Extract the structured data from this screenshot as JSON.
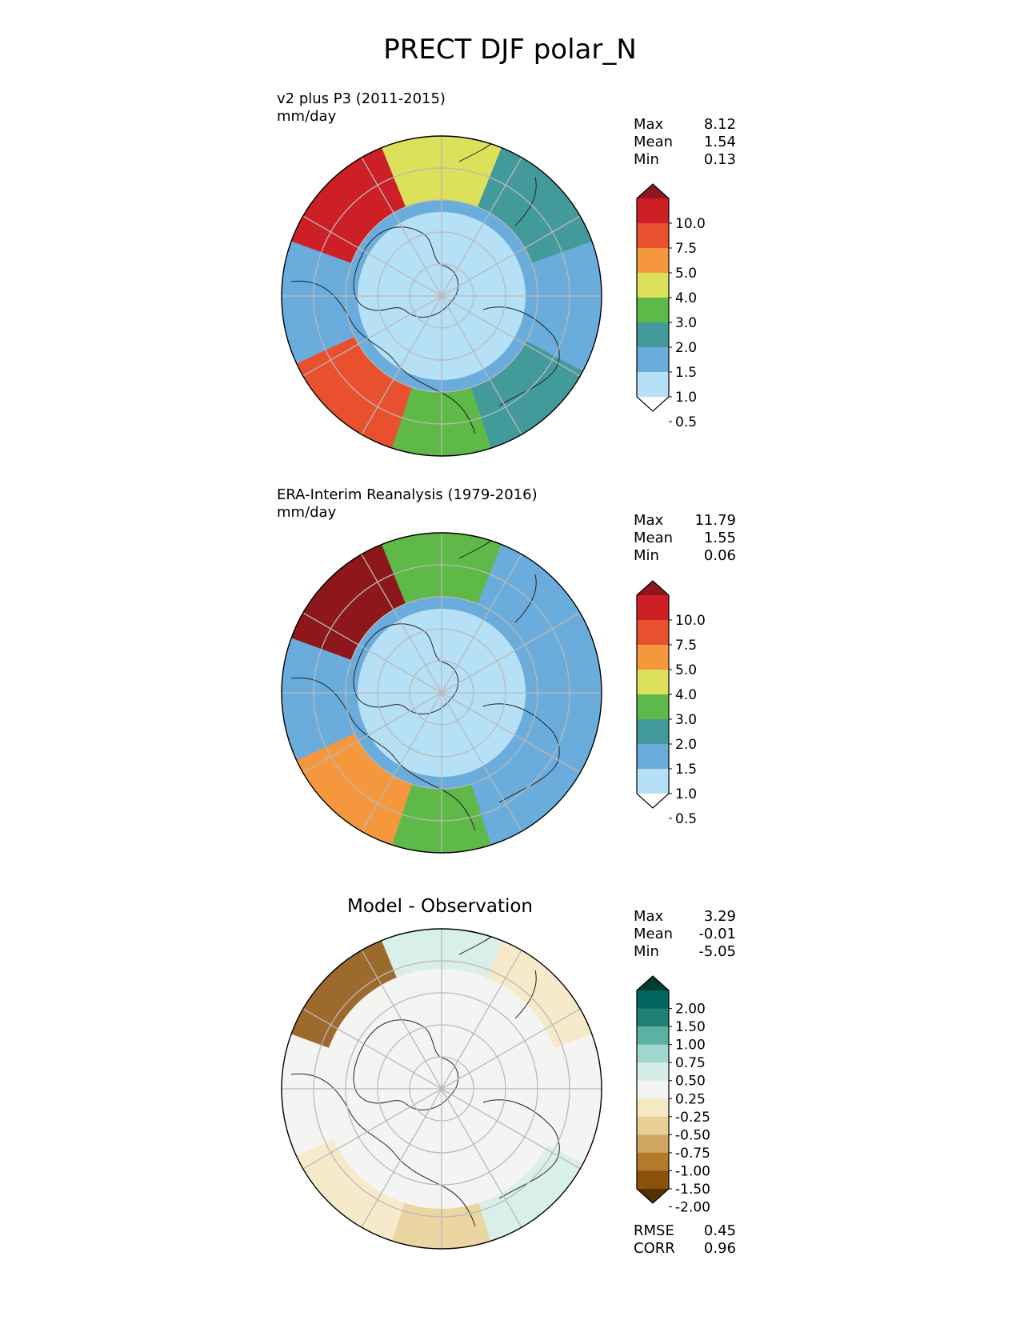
{
  "figure_title": "PRECT DJF polar_N",
  "chart_data": [
    {
      "type": "heatmap",
      "projection": "north polar stereographic",
      "title": "v2 plus P3 (2011-2015)",
      "units": "mm/day",
      "stats": [
        {
          "label": "Max",
          "value": "8.12"
        },
        {
          "label": "Mean",
          "value": "1.54"
        },
        {
          "label": "Min",
          "value": "0.13"
        }
      ],
      "colorbar": {
        "extend": "both",
        "ticks": [
          "10.0",
          "7.5",
          "5.0",
          "4.0",
          "3.0",
          "2.0",
          "1.5",
          "1.0",
          "0.5"
        ],
        "colors": [
          "#ffffff",
          "#b6e0f6",
          "#6aaddc",
          "#439a9a",
          "#5fb949",
          "#dde05a",
          "#f5973d",
          "#e9502e",
          "#cc1f26",
          "#8d171a"
        ]
      },
      "region_summary": [
        {
          "sector": "north",
          "level": 3.0
        },
        {
          "sector": "north-west",
          "level": 7.5
        },
        {
          "sector": "north-east",
          "level": 1.5
        },
        {
          "sector": "east",
          "level": 1.0
        },
        {
          "sector": "south-east",
          "level": 1.5
        },
        {
          "sector": "south",
          "level": 2.0
        },
        {
          "sector": "south-west",
          "level": 5.0
        },
        {
          "sector": "west",
          "level": 1.0
        },
        {
          "sector": "pole",
          "level": 0.5
        }
      ]
    },
    {
      "type": "heatmap",
      "projection": "north polar stereographic",
      "title": "ERA-Interim Reanalysis (1979-2016)",
      "units": "mm/day",
      "stats": [
        {
          "label": "Max",
          "value": "11.79"
        },
        {
          "label": "Mean",
          "value": "1.55"
        },
        {
          "label": "Min",
          "value": "0.06"
        }
      ],
      "colorbar": {
        "extend": "both",
        "ticks": [
          "10.0",
          "7.5",
          "5.0",
          "4.0",
          "3.0",
          "2.0",
          "1.5",
          "1.0",
          "0.5"
        ],
        "colors": [
          "#ffffff",
          "#b6e0f6",
          "#6aaddc",
          "#439a9a",
          "#5fb949",
          "#dde05a",
          "#f5973d",
          "#e9502e",
          "#cc1f26",
          "#8d171a"
        ]
      },
      "region_summary": [
        {
          "sector": "north",
          "level": 2.0
        },
        {
          "sector": "north-west",
          "level": 10.0
        },
        {
          "sector": "north-east",
          "level": 1.0
        },
        {
          "sector": "east",
          "level": 1.0
        },
        {
          "sector": "south-east",
          "level": 1.0
        },
        {
          "sector": "south",
          "level": 2.0
        },
        {
          "sector": "south-west",
          "level": 4.0
        },
        {
          "sector": "west",
          "level": 1.0
        },
        {
          "sector": "pole",
          "level": 0.5
        }
      ]
    },
    {
      "type": "heatmap",
      "projection": "north polar stereographic",
      "title": "Model - Observation",
      "stats": [
        {
          "label": "Max",
          "value": "3.29"
        },
        {
          "label": "Mean",
          "value": "-0.01"
        },
        {
          "label": "Min",
          "value": "-5.05"
        }
      ],
      "colorbar": {
        "extend": "both",
        "ticks": [
          "2.00",
          "1.50",
          "1.00",
          "0.75",
          "0.50",
          "0.25",
          "-0.25",
          "-0.50",
          "-0.75",
          "-1.00",
          "-1.50",
          "-2.00"
        ],
        "colors": [
          "#543005",
          "#8c510a",
          "#b37a2a",
          "#d1a662",
          "#e8cf95",
          "#f6e8c3",
          "#f4f4f2",
          "#d4ede9",
          "#9ed8cd",
          "#5bb1a3",
          "#208073",
          "#01665e",
          "#003c30"
        ]
      },
      "region_summary": [
        {
          "sector": "north-west",
          "level": -2.0
        },
        {
          "sector": "north",
          "level": 0.25
        },
        {
          "sector": "north-east",
          "level": -0.5
        },
        {
          "sector": "south",
          "level": -0.75
        },
        {
          "sector": "south-west",
          "level": -0.5
        },
        {
          "sector": "south-east",
          "level": 0.25
        }
      ],
      "metrics": [
        {
          "label": "RMSE",
          "value": "0.45"
        },
        {
          "label": "CORR",
          "value": "0.96"
        }
      ]
    }
  ]
}
